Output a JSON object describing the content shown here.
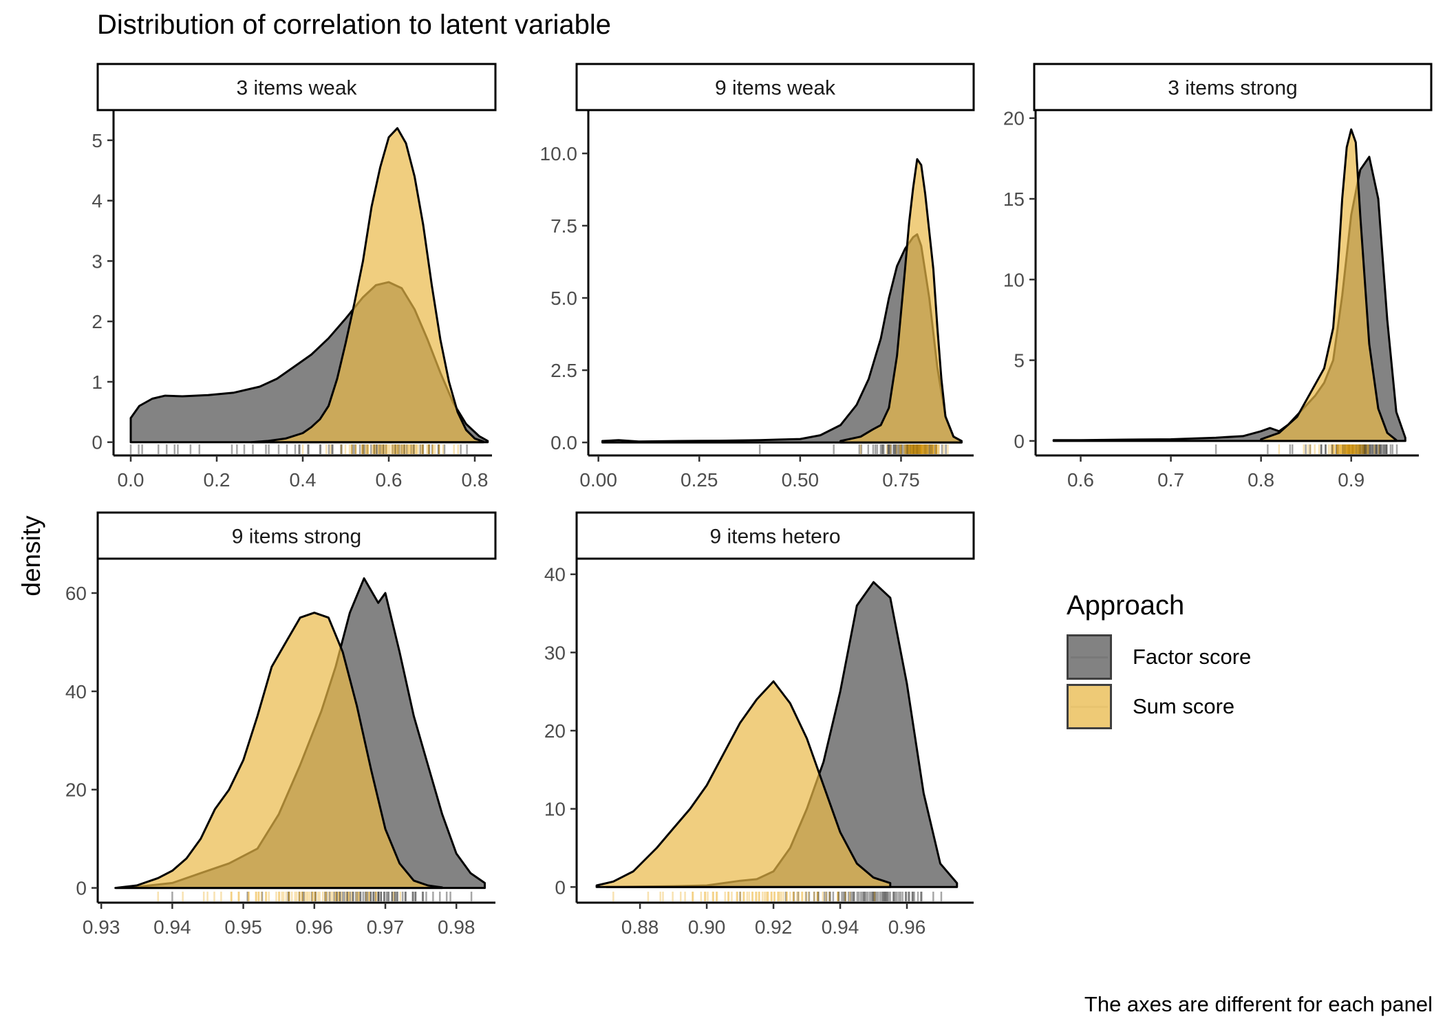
{
  "title": "Distribution of correlation to latent variable",
  "ylabel": "density",
  "caption": "The axes are different for each panel",
  "legend": {
    "title": "Approach",
    "items": [
      {
        "label": "Factor score",
        "color": "#595959",
        "line": "#4d4d4d"
      },
      {
        "label": "Sum score",
        "color": "#E9B949",
        "line": "#e0b040"
      }
    ]
  },
  "chart_data": [
    {
      "type": "area",
      "panel": "3 items weak",
      "xlim": [
        -0.04,
        0.84
      ],
      "ylim": [
        -0.22,
        5.5
      ],
      "xticks": [
        0.0,
        0.2,
        0.4,
        0.6,
        0.8
      ],
      "xtick_labels": [
        "0.0",
        "0.2",
        "0.4",
        "0.6",
        "0.8"
      ],
      "yticks": [
        0,
        1,
        2,
        3,
        4,
        5
      ],
      "ytick_labels": [
        "0",
        "1",
        "2",
        "3",
        "4",
        "5"
      ],
      "series": [
        {
          "name": "Factor score",
          "x": [
            0.0,
            0.02,
            0.05,
            0.08,
            0.12,
            0.18,
            0.24,
            0.3,
            0.34,
            0.38,
            0.42,
            0.46,
            0.5,
            0.54,
            0.57,
            0.6,
            0.63,
            0.66,
            0.69,
            0.72,
            0.75,
            0.78,
            0.81,
            0.83
          ],
          "y": [
            0.4,
            0.6,
            0.72,
            0.77,
            0.76,
            0.78,
            0.82,
            0.92,
            1.05,
            1.25,
            1.45,
            1.72,
            2.05,
            2.4,
            2.6,
            2.65,
            2.55,
            2.2,
            1.7,
            1.15,
            0.65,
            0.3,
            0.1,
            0.02
          ]
        },
        {
          "name": "Sum score",
          "x": [
            0.28,
            0.32,
            0.36,
            0.4,
            0.42,
            0.44,
            0.46,
            0.48,
            0.5,
            0.52,
            0.54,
            0.56,
            0.58,
            0.6,
            0.62,
            0.64,
            0.66,
            0.68,
            0.7,
            0.72,
            0.74,
            0.76,
            0.78,
            0.8,
            0.82
          ],
          "y": [
            0.0,
            0.02,
            0.06,
            0.15,
            0.25,
            0.38,
            0.6,
            1.05,
            1.65,
            2.3,
            3.0,
            3.9,
            4.55,
            5.05,
            5.2,
            4.95,
            4.4,
            3.6,
            2.6,
            1.7,
            1.0,
            0.5,
            0.2,
            0.06,
            0.01
          ]
        }
      ]
    },
    {
      "type": "area",
      "panel": "9 items weak",
      "xlim": [
        -0.025,
        0.93
      ],
      "ylim": [
        -0.45,
        11.5
      ],
      "xticks": [
        0.0,
        0.25,
        0.5,
        0.75
      ],
      "xtick_labels": [
        "0.00",
        "0.25",
        "0.50",
        "0.75"
      ],
      "yticks": [
        0.0,
        2.5,
        5.0,
        7.5,
        10.0
      ],
      "ytick_labels": [
        "0.0",
        "2.5",
        "5.0",
        "7.5",
        "10.0"
      ],
      "series": [
        {
          "name": "Factor score",
          "x": [
            0.01,
            0.05,
            0.1,
            0.2,
            0.3,
            0.4,
            0.45,
            0.5,
            0.55,
            0.6,
            0.64,
            0.67,
            0.7,
            0.72,
            0.74,
            0.76,
            0.78,
            0.79,
            0.8,
            0.82,
            0.84,
            0.86,
            0.88,
            0.9
          ],
          "y": [
            0.05,
            0.08,
            0.03,
            0.05,
            0.06,
            0.08,
            0.1,
            0.12,
            0.25,
            0.6,
            1.3,
            2.2,
            3.6,
            5.0,
            6.1,
            6.7,
            7.1,
            7.2,
            6.8,
            5.0,
            2.6,
            0.9,
            0.2,
            0.05
          ]
        },
        {
          "name": "Sum score",
          "x": [
            0.6,
            0.65,
            0.68,
            0.7,
            0.72,
            0.74,
            0.76,
            0.77,
            0.78,
            0.79,
            0.8,
            0.81,
            0.82,
            0.83,
            0.84,
            0.85,
            0.86,
            0.88,
            0.9
          ],
          "y": [
            0.05,
            0.2,
            0.45,
            0.6,
            1.2,
            3.0,
            6.0,
            7.6,
            8.8,
            9.8,
            9.6,
            8.6,
            7.3,
            6.0,
            4.0,
            2.2,
            0.9,
            0.2,
            0.05
          ]
        }
      ]
    },
    {
      "type": "area",
      "panel": "3 items strong",
      "xlim": [
        0.55,
        0.975
      ],
      "ylim": [
        -0.9,
        20.5
      ],
      "xticks": [
        0.6,
        0.7,
        0.8,
        0.9
      ],
      "xtick_labels": [
        "0.6",
        "0.7",
        "0.8",
        "0.9"
      ],
      "yticks": [
        0,
        5,
        10,
        15,
        20
      ],
      "ytick_labels": [
        "0",
        "5",
        "10",
        "15",
        "20"
      ],
      "series": [
        {
          "name": "Factor score",
          "x": [
            0.57,
            0.6,
            0.65,
            0.7,
            0.75,
            0.78,
            0.8,
            0.81,
            0.82,
            0.83,
            0.84,
            0.85,
            0.86,
            0.87,
            0.88,
            0.89,
            0.9,
            0.91,
            0.92,
            0.93,
            0.94,
            0.95,
            0.96
          ],
          "y": [
            0.05,
            0.05,
            0.08,
            0.1,
            0.2,
            0.3,
            0.6,
            0.8,
            0.6,
            1.0,
            1.6,
            2.2,
            2.8,
            3.6,
            5.0,
            9.0,
            14.0,
            16.8,
            17.6,
            15.0,
            7.5,
            1.8,
            0.2
          ]
        },
        {
          "name": "Sum score",
          "x": [
            0.8,
            0.82,
            0.84,
            0.85,
            0.86,
            0.87,
            0.88,
            0.885,
            0.89,
            0.895,
            0.9,
            0.905,
            0.91,
            0.92,
            0.93,
            0.94,
            0.95
          ],
          "y": [
            0.1,
            0.5,
            1.5,
            2.5,
            3.5,
            4.5,
            7.0,
            10.5,
            15.0,
            18.2,
            19.3,
            18.5,
            14.0,
            6.0,
            2.0,
            0.5,
            0.05
          ]
        }
      ]
    },
    {
      "type": "area",
      "panel": "9 items strong",
      "xlim": [
        0.9295,
        0.9855
      ],
      "ylim": [
        -3,
        67
      ],
      "xticks": [
        0.93,
        0.94,
        0.95,
        0.96,
        0.97,
        0.98
      ],
      "xtick_labels": [
        "0.93",
        "0.94",
        "0.95",
        "0.96",
        "0.97",
        "0.98"
      ],
      "yticks": [
        0,
        20,
        40,
        60
      ],
      "ytick_labels": [
        "0",
        "20",
        "40",
        "60"
      ],
      "series": [
        {
          "name": "Factor score",
          "x": [
            0.932,
            0.935,
            0.94,
            0.944,
            0.948,
            0.952,
            0.955,
            0.958,
            0.961,
            0.963,
            0.965,
            0.967,
            0.969,
            0.97,
            0.972,
            0.974,
            0.976,
            0.978,
            0.98,
            0.982,
            0.984
          ],
          "y": [
            0,
            0.2,
            1.0,
            3.0,
            5.0,
            8.0,
            15.0,
            25.0,
            36.0,
            45.0,
            56.0,
            63.0,
            58.0,
            60.0,
            48.0,
            35.0,
            25.0,
            15.0,
            7.0,
            3.0,
            1.0
          ]
        },
        {
          "name": "Sum score",
          "x": [
            0.932,
            0.935,
            0.938,
            0.94,
            0.942,
            0.944,
            0.946,
            0.948,
            0.95,
            0.952,
            0.954,
            0.956,
            0.958,
            0.96,
            0.962,
            0.964,
            0.966,
            0.968,
            0.97,
            0.972,
            0.974,
            0.976,
            0.978
          ],
          "y": [
            0,
            0.5,
            2.0,
            3.5,
            6.0,
            10.0,
            16.0,
            20.0,
            26.0,
            35.0,
            45.0,
            50.0,
            55.0,
            56.0,
            55.0,
            48.0,
            37.0,
            24.0,
            12.0,
            5.0,
            1.5,
            0.5,
            0.1
          ]
        }
      ]
    },
    {
      "type": "area",
      "panel": "9 items hetero",
      "xlim": [
        0.861,
        0.98
      ],
      "ylim": [
        -2,
        42
      ],
      "xticks": [
        0.88,
        0.9,
        0.92,
        0.94,
        0.96
      ],
      "xtick_labels": [
        "0.88",
        "0.90",
        "0.92",
        "0.94",
        "0.96"
      ],
      "yticks": [
        0,
        10,
        20,
        30,
        40
      ],
      "ytick_labels": [
        "0",
        "10",
        "20",
        "30",
        "40"
      ],
      "series": [
        {
          "name": "Factor score",
          "x": [
            0.87,
            0.89,
            0.9,
            0.91,
            0.915,
            0.92,
            0.925,
            0.93,
            0.935,
            0.94,
            0.945,
            0.95,
            0.955,
            0.96,
            0.965,
            0.97,
            0.975
          ],
          "y": [
            0,
            0.1,
            0.2,
            0.8,
            1.0,
            2.0,
            5.0,
            10.0,
            16.0,
            25.0,
            36.0,
            39.0,
            37.0,
            26.0,
            12.0,
            3.0,
            0.5
          ]
        },
        {
          "name": "Sum score",
          "x": [
            0.867,
            0.872,
            0.878,
            0.885,
            0.89,
            0.895,
            0.9,
            0.905,
            0.91,
            0.915,
            0.92,
            0.925,
            0.93,
            0.935,
            0.94,
            0.945,
            0.95,
            0.955
          ],
          "y": [
            0.2,
            0.7,
            2.0,
            5.0,
            7.5,
            10.0,
            13.0,
            17.0,
            21.0,
            24.0,
            26.3,
            23.5,
            19.0,
            13.0,
            7.0,
            3.0,
            1.2,
            0.5
          ]
        }
      ]
    }
  ]
}
